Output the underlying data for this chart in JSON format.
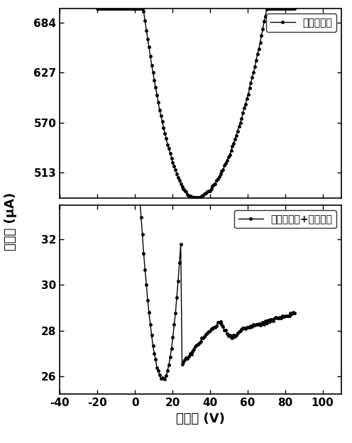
{
  "top_plot": {
    "legend_label": "双层石墨烯",
    "ylim": [
      484,
      700
    ],
    "yticks": [
      513,
      570,
      627,
      684
    ],
    "ylabel": "漏电流 (μA)"
  },
  "bottom_plot": {
    "legend_label": "双层石墨烯+三聚氰胺",
    "ylim": [
      25.2,
      33.5
    ],
    "yticks": [
      26,
      28,
      30,
      32
    ]
  },
  "xlim": [
    -40,
    110
  ],
  "xticks": [
    -40,
    -20,
    0,
    20,
    40,
    60,
    80,
    100
  ],
  "xlabel": "栊电压 (V)",
  "line_color": "#000000",
  "marker": "o",
  "markersize": 3.0,
  "linewidth": 1.0,
  "background_color": "#ffffff",
  "tick_fontsize": 11,
  "label_fontsize": 13,
  "legend_fontsize": 10
}
